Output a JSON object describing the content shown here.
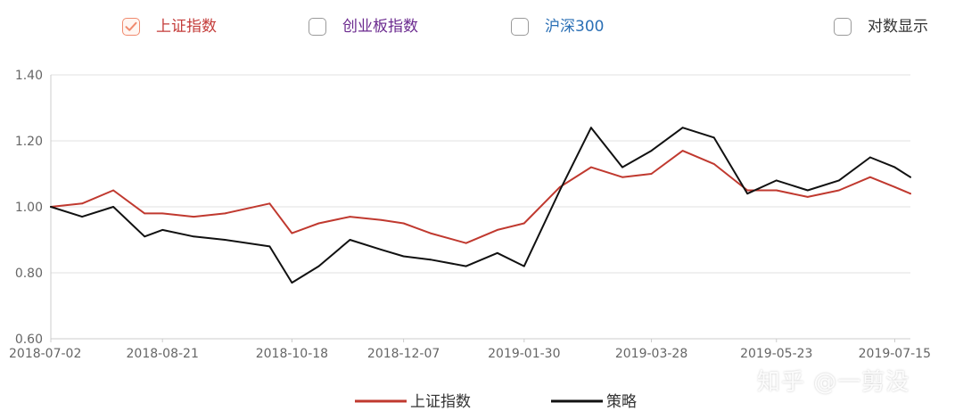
{
  "toggles": [
    {
      "label": "上证指数",
      "checked": true,
      "color": "#c43c3a"
    },
    {
      "label": "创业板指数",
      "checked": false,
      "color": "#6b2a8f"
    },
    {
      "label": "沪深300",
      "checked": false,
      "color": "#2a6fb5"
    },
    {
      "label": "对数显示",
      "checked": false,
      "color": "#333333"
    }
  ],
  "watermark": "知乎 @一剪没",
  "colors": {
    "sse": "#c0392f",
    "strategy": "#111111",
    "grid": "#e0e0e0",
    "axis": "#cccccc",
    "check_accent": "#f08a6e"
  },
  "chart_data": {
    "type": "line",
    "title": "",
    "xlabel": "",
    "ylabel": "",
    "ylim": [
      0.6,
      1.4
    ],
    "yticks": [
      "0.60",
      "0.80",
      "1.00",
      "1.20",
      "1.40"
    ],
    "xticks": [
      "2018-07-02",
      "2018-08-21",
      "2018-10-18",
      "2018-12-07",
      "2019-01-30",
      "2019-03-28",
      "2019-05-23",
      "2019-07-15"
    ],
    "legend_position": "bottom-center",
    "grid": true,
    "x": [
      "2018-07-02",
      "2018-07-16",
      "2018-07-30",
      "2018-08-13",
      "2018-08-21",
      "2018-09-04",
      "2018-09-18",
      "2018-10-08",
      "2018-10-18",
      "2018-10-30",
      "2018-11-13",
      "2018-11-27",
      "2018-12-07",
      "2018-12-19",
      "2019-01-04",
      "2019-01-18",
      "2019-01-30",
      "2019-02-15",
      "2019-03-01",
      "2019-03-15",
      "2019-03-28",
      "2019-04-11",
      "2019-04-25",
      "2019-05-10",
      "2019-05-23",
      "2019-06-06",
      "2019-06-20",
      "2019-07-04",
      "2019-07-15",
      "2019-07-22"
    ],
    "series": [
      {
        "name": "上证指数",
        "color": "#c0392f",
        "values": [
          1.0,
          1.01,
          1.05,
          0.98,
          0.98,
          0.97,
          0.98,
          1.01,
          0.92,
          0.95,
          0.97,
          0.96,
          0.95,
          0.92,
          0.89,
          0.93,
          0.95,
          1.06,
          1.12,
          1.09,
          1.1,
          1.17,
          1.13,
          1.05,
          1.05,
          1.03,
          1.05,
          1.09,
          1.06,
          1.04
        ]
      },
      {
        "name": "策略",
        "color": "#111111",
        "values": [
          1.0,
          0.97,
          1.0,
          0.91,
          0.93,
          0.91,
          0.9,
          0.88,
          0.77,
          0.82,
          0.9,
          0.87,
          0.85,
          0.84,
          0.82,
          0.86,
          0.82,
          1.05,
          1.24,
          1.12,
          1.17,
          1.24,
          1.21,
          1.04,
          1.08,
          1.05,
          1.08,
          1.15,
          1.12,
          1.09
        ]
      }
    ]
  }
}
